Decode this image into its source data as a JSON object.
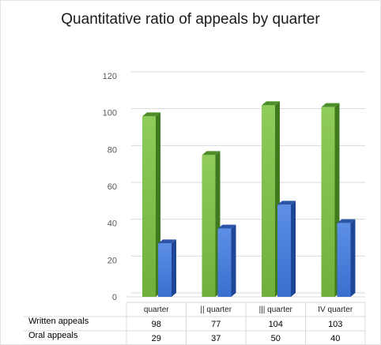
{
  "chart_data": {
    "type": "bar",
    "title": "Quantitative ratio of appeals by quarter",
    "xlabel": "",
    "ylabel": "",
    "ylim": [
      0,
      120
    ],
    "yticks": [
      0,
      20,
      40,
      60,
      80,
      100,
      120
    ],
    "grid": true,
    "categories": [
      "quarter",
      "|| quarter",
      "||| quarter",
      "IV quarter"
    ],
    "series": [
      {
        "name": "Written appeals",
        "values": [
          98,
          77,
          104,
          103
        ]
      },
      {
        "name": "Oral appeals",
        "values": [
          29,
          37,
          50,
          40
        ]
      }
    ],
    "data_table": true
  },
  "colors": {
    "written_front": "#6fb03a",
    "written_light": "#8fcc5a",
    "written_side": "#3f7a1e",
    "written_top": "#4f8f2a",
    "oral_front": "#3a6fd0",
    "oral_light": "#5d8fe6",
    "oral_side": "#1f4696",
    "oral_top": "#2a55a8",
    "grid": "#d9d9d9"
  }
}
